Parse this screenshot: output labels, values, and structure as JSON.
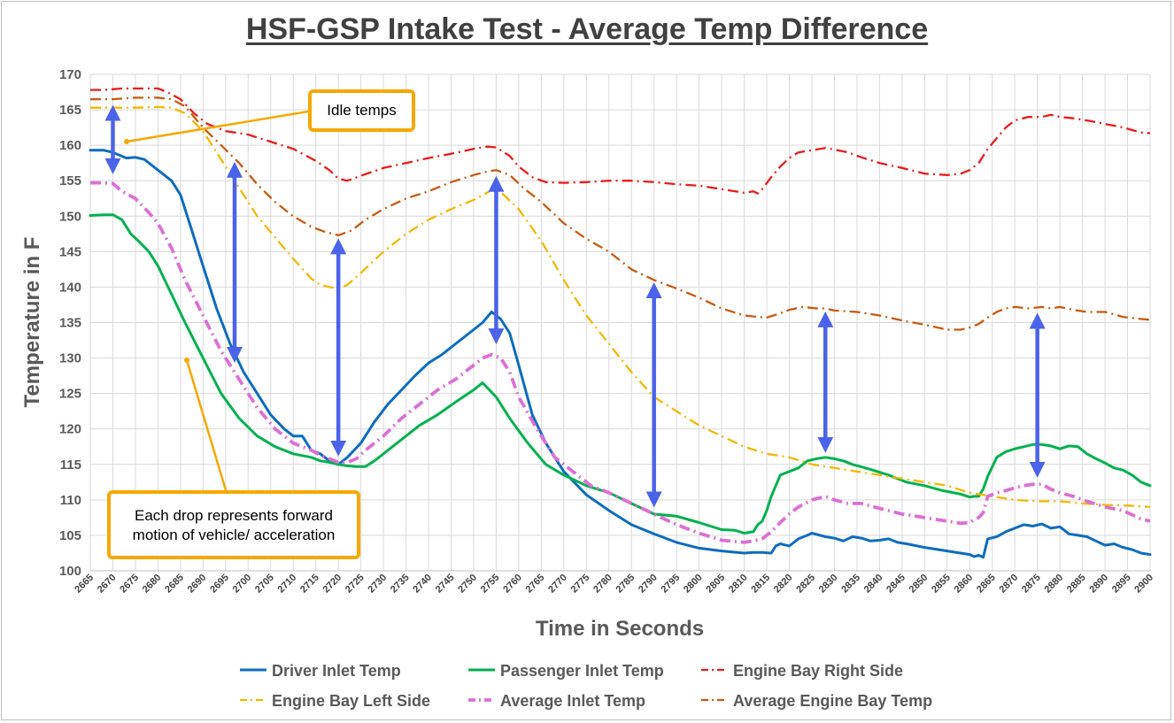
{
  "chart_data": {
    "type": "line",
    "title": "HSF-GSP Intake Test - Average Temp Difference",
    "xlabel": "Time in Seconds",
    "ylabel": "Temperature in F",
    "xlim": [
      2665,
      2900
    ],
    "ylim": [
      100,
      170
    ],
    "x_ticks": [
      2665,
      2670,
      2675,
      2680,
      2685,
      2690,
      2695,
      2700,
      2705,
      2710,
      2715,
      2720,
      2725,
      2730,
      2735,
      2740,
      2745,
      2750,
      2755,
      2760,
      2765,
      2770,
      2775,
      2780,
      2785,
      2790,
      2795,
      2800,
      2805,
      2810,
      2815,
      2820,
      2825,
      2830,
      2835,
      2840,
      2845,
      2850,
      2855,
      2860,
      2865,
      2870,
      2875,
      2880,
      2885,
      2890,
      2895,
      2900
    ],
    "y_ticks": [
      100,
      105,
      110,
      115,
      120,
      125,
      130,
      135,
      140,
      145,
      150,
      155,
      160,
      165,
      170
    ],
    "grid": true,
    "legend_position": "bottom",
    "series": [
      {
        "name": "Driver Inlet Temp",
        "color": "#0f6cbd",
        "style": "solid",
        "x": [
          2665,
          2668,
          2670,
          2673,
          2675,
          2677,
          2679,
          2681,
          2683,
          2685,
          2687,
          2690,
          2693,
          2696,
          2699,
          2702,
          2705,
          2708,
          2710,
          2712,
          2714,
          2716,
          2718,
          2720,
          2722,
          2725,
          2728,
          2731,
          2734,
          2737,
          2740,
          2743,
          2746,
          2749,
          2752,
          2754,
          2756,
          2758,
          2760,
          2763,
          2766,
          2770,
          2775,
          2780,
          2785,
          2790,
          2795,
          2800,
          2805,
          2810,
          2812,
          2814,
          2816,
          2817,
          2818,
          2820,
          2822,
          2824,
          2825,
          2828,
          2830,
          2832,
          2834,
          2836,
          2838,
          2840,
          2842,
          2844,
          2846,
          2850,
          2855,
          2860,
          2861,
          2862,
          2863,
          2864,
          2866,
          2868,
          2870,
          2872,
          2874,
          2876,
          2878,
          2880,
          2882,
          2884,
          2886,
          2888,
          2890,
          2892,
          2894,
          2896,
          2898,
          2900
        ],
        "y": [
          159.3,
          159.3,
          159,
          158.2,
          158.3,
          158,
          157,
          156,
          155,
          153,
          149,
          143,
          137,
          132,
          128,
          125,
          122,
          120,
          119,
          119,
          117,
          116.5,
          115.5,
          115,
          116,
          118,
          121,
          123.5,
          125.5,
          127.5,
          129.3,
          130.5,
          132,
          133.5,
          135,
          136.5,
          135.5,
          133.5,
          129,
          122,
          118,
          114,
          110.7,
          108.5,
          106.5,
          105.2,
          104,
          103.2,
          102.8,
          102.5,
          102.6,
          102.6,
          102.5,
          103.5,
          103.8,
          103.5,
          104.5,
          105,
          105.3,
          104.8,
          104.6,
          104.2,
          104.8,
          104.6,
          104.2,
          104.3,
          104.5,
          104,
          103.8,
          103.3,
          102.8,
          102.3,
          102,
          102.2,
          101.9,
          104.5,
          104.8,
          105.5,
          106,
          106.5,
          106.3,
          106.6,
          106,
          106.2,
          105.2,
          105,
          104.8,
          104.2,
          103.6,
          103.8,
          103.3,
          103,
          102.5,
          102.3
        ]
      },
      {
        "name": "Passenger Inlet Temp",
        "color": "#00b050",
        "style": "solid",
        "x": [
          2665,
          2668,
          2670,
          2672,
          2674,
          2676,
          2678,
          2680,
          2683,
          2686,
          2690,
          2694,
          2698,
          2702,
          2706,
          2710,
          2714,
          2716,
          2718,
          2720,
          2722,
          2724,
          2726,
          2728,
          2730,
          2734,
          2738,
          2742,
          2746,
          2750,
          2752,
          2755,
          2758,
          2762,
          2766,
          2770,
          2775,
          2780,
          2785,
          2790,
          2795,
          2800,
          2805,
          2808,
          2810,
          2812,
          2813,
          2814,
          2815,
          2816,
          2818,
          2820,
          2822,
          2824,
          2826,
          2828,
          2830,
          2832,
          2834,
          2838,
          2842,
          2846,
          2850,
          2854,
          2858,
          2860,
          2861,
          2862,
          2863,
          2864,
          2866,
          2868,
          2870,
          2872,
          2874,
          2876,
          2878,
          2880,
          2882,
          2884,
          2886,
          2888,
          2890,
          2892,
          2894,
          2896,
          2898,
          2900
        ],
        "y": [
          150.1,
          150.2,
          150.2,
          149.5,
          147.5,
          146.3,
          145,
          143,
          139,
          135,
          130,
          125,
          121.5,
          119,
          117.5,
          116.5,
          116,
          115.5,
          115.3,
          115,
          114.8,
          114.7,
          114.7,
          115.5,
          116.5,
          118.5,
          120.5,
          122,
          123.8,
          125.5,
          126.5,
          124.5,
          121.5,
          118,
          115,
          113.5,
          112,
          111,
          109.5,
          108,
          107.7,
          106.8,
          105.8,
          105.7,
          105.3,
          105.5,
          106.5,
          107,
          108.5,
          110.5,
          113.5,
          114,
          114.5,
          115.5,
          115.8,
          116,
          115.8,
          115.5,
          115,
          114.3,
          113.5,
          112.5,
          112,
          111.3,
          110.8,
          110.4,
          110.5,
          110.5,
          111.5,
          113.3,
          116,
          116.8,
          117.2,
          117.5,
          117.8,
          117.8,
          117.6,
          117.2,
          117.6,
          117.5,
          116.5,
          115.8,
          115.2,
          114.5,
          114.2,
          113.5,
          112.5,
          112
        ]
      },
      {
        "name": "Engine Bay Right Side",
        "color": "#e81c1c",
        "style": "dashdot",
        "x": [
          2665,
          2668,
          2672,
          2676,
          2680,
          2682,
          2685,
          2688,
          2691,
          2695,
          2700,
          2705,
          2710,
          2715,
          2718,
          2720,
          2722,
          2725,
          2730,
          2735,
          2740,
          2745,
          2750,
          2753,
          2755,
          2758,
          2760,
          2763,
          2766,
          2770,
          2775,
          2780,
          2785,
          2790,
          2795,
          2800,
          2805,
          2810,
          2812,
          2813,
          2814,
          2816,
          2818,
          2820,
          2822,
          2825,
          2828,
          2830,
          2833,
          2836,
          2840,
          2845,
          2850,
          2855,
          2858,
          2860,
          2862,
          2864,
          2866,
          2868,
          2870,
          2873,
          2876,
          2878,
          2880,
          2883,
          2886,
          2890,
          2894,
          2898,
          2900
        ],
        "y": [
          167.8,
          167.8,
          168,
          168,
          168,
          167.5,
          166.5,
          164.5,
          163,
          162,
          161.5,
          160.5,
          159.5,
          157.8,
          156.5,
          155.3,
          155,
          155.7,
          156.8,
          157.5,
          158.2,
          158.8,
          159.5,
          159.8,
          159.7,
          158.5,
          157,
          155.5,
          154.8,
          154.7,
          154.8,
          155,
          155,
          154.8,
          154.5,
          154.3,
          153.8,
          153.3,
          153.5,
          153.2,
          153.8,
          155.5,
          157,
          158.2,
          159,
          159.3,
          159.6,
          159.4,
          159,
          158.3,
          157.5,
          156.8,
          156,
          155.8,
          156,
          156.5,
          157.5,
          159.5,
          161,
          162.5,
          163.5,
          164,
          164,
          164.3,
          164,
          163.8,
          163.5,
          163,
          162.5,
          161.8,
          161.7
        ]
      },
      {
        "name": "Engine Bay Left Side",
        "color": "#f2b800",
        "style": "dashdot",
        "x": [
          2665,
          2670,
          2675,
          2680,
          2683,
          2686,
          2690,
          2694,
          2698,
          2702,
          2706,
          2710,
          2714,
          2716,
          2718,
          2720,
          2722,
          2725,
          2730,
          2735,
          2740,
          2745,
          2750,
          2755,
          2760,
          2765,
          2770,
          2775,
          2780,
          2785,
          2790,
          2795,
          2800,
          2805,
          2810,
          2815,
          2820,
          2825,
          2830,
          2835,
          2840,
          2845,
          2850,
          2855,
          2860,
          2865,
          2870,
          2875,
          2880,
          2885,
          2890,
          2895,
          2900
        ],
        "y": [
          165.3,
          165.3,
          165.3,
          165.4,
          165.3,
          164.5,
          162,
          158,
          154,
          150,
          147,
          144,
          141.2,
          140.3,
          140,
          139.8,
          140.3,
          142,
          145,
          147.5,
          149.5,
          151,
          152.3,
          154,
          151,
          146.5,
          141,
          136,
          132,
          128,
          124.5,
          122.5,
          120.5,
          119,
          117.5,
          116.5,
          116,
          115,
          114.5,
          114,
          113.5,
          113,
          112.5,
          112,
          111,
          110.5,
          110,
          109.8,
          109.8,
          109.5,
          109.3,
          109.2,
          109
        ]
      },
      {
        "name": "Average Inlet Temp",
        "color": "#da70d6",
        "style": "dashdot",
        "x": [
          2665,
          2668,
          2670,
          2672,
          2675,
          2678,
          2680,
          2683,
          2686,
          2690,
          2694,
          2698,
          2702,
          2706,
          2710,
          2714,
          2716,
          2718,
          2720,
          2722,
          2724,
          2726,
          2730,
          2734,
          2738,
          2742,
          2746,
          2750,
          2752,
          2754,
          2756,
          2758,
          2760,
          2764,
          2768,
          2772,
          2776,
          2780,
          2785,
          2790,
          2795,
          2800,
          2805,
          2810,
          2812,
          2814,
          2816,
          2818,
          2820,
          2822,
          2825,
          2828,
          2830,
          2833,
          2836,
          2840,
          2845,
          2850,
          2855,
          2858,
          2860,
          2861,
          2862,
          2863,
          2864,
          2866,
          2868,
          2870,
          2872,
          2874,
          2876,
          2878,
          2880,
          2883,
          2886,
          2890,
          2894,
          2898,
          2900
        ],
        "y": [
          154.7,
          154.7,
          154.6,
          153.5,
          152.5,
          150.5,
          149,
          145.5,
          141,
          136,
          131,
          127,
          123,
          120,
          118,
          117,
          116.3,
          115.8,
          115.3,
          115.3,
          115.8,
          117,
          119,
          121.5,
          123.5,
          125.5,
          127,
          129,
          130,
          130.5,
          130,
          128,
          124.5,
          120,
          116,
          114,
          112,
          111,
          109.5,
          108,
          106.5,
          105.3,
          104.3,
          104,
          104.2,
          104.5,
          105.5,
          106.8,
          108,
          109,
          110,
          110.5,
          110,
          109.5,
          109.5,
          108.8,
          108,
          107.5,
          107,
          106.7,
          106.8,
          107.2,
          107.5,
          108.2,
          110.5,
          111,
          111.3,
          111.7,
          112,
          112.2,
          112.2,
          111.5,
          111,
          110.5,
          109.8,
          109,
          108.5,
          107.3,
          107
        ]
      },
      {
        "name": "Average Engine Bay Temp",
        "color": "#c55a11",
        "style": "dashdot",
        "x": [
          2665,
          2670,
          2675,
          2680,
          2683,
          2686,
          2690,
          2694,
          2698,
          2702,
          2706,
          2710,
          2714,
          2717,
          2720,
          2723,
          2726,
          2730,
          2735,
          2740,
          2745,
          2750,
          2753,
          2755,
          2758,
          2761,
          2765,
          2770,
          2775,
          2780,
          2785,
          2790,
          2795,
          2800,
          2805,
          2810,
          2813,
          2815,
          2818,
          2820,
          2823,
          2826,
          2828,
          2830,
          2835,
          2840,
          2845,
          2850,
          2855,
          2858,
          2860,
          2862,
          2864,
          2866,
          2868,
          2870,
          2873,
          2876,
          2878,
          2880,
          2883,
          2886,
          2890,
          2894,
          2898,
          2900
        ],
        "y": [
          166.5,
          166.5,
          166.7,
          166.7,
          166.5,
          165.5,
          162.5,
          160,
          157.5,
          154.5,
          152,
          150,
          148.5,
          147.8,
          147.3,
          148,
          149.5,
          151,
          152.5,
          153.5,
          154.8,
          155.8,
          156.3,
          156.5,
          155.8,
          154,
          152,
          149,
          146.8,
          145,
          142.5,
          141,
          139.8,
          138.5,
          137,
          136,
          135.8,
          135.7,
          136.3,
          136.8,
          137.2,
          137,
          137,
          136.7,
          136.5,
          136,
          135.3,
          134.7,
          134,
          134,
          134.3,
          134.8,
          135.7,
          136.5,
          137,
          137.2,
          137,
          137.2,
          137,
          137.2,
          136.8,
          136.5,
          136.5,
          135.8,
          135.5,
          135.4
        ]
      }
    ],
    "annotations": [
      {
        "text": "Idle temps"
      },
      {
        "text": "Each drop represents forward motion of vehicle/ acceleration"
      }
    ],
    "arrows": [
      {
        "x": 2670,
        "y_from": 155.3,
        "y_to": 166.3
      },
      {
        "x": 2697,
        "y_from": 128.7,
        "y_to": 158.3
      },
      {
        "x": 2720,
        "y_from": 115.5,
        "y_to": 147.5
      },
      {
        "x": 2755,
        "y_from": 131.3,
        "y_to": 156.3
      },
      {
        "x": 2790,
        "y_from": 108.3,
        "y_to": 141.3
      },
      {
        "x": 2828,
        "y_from": 116,
        "y_to": 137.2
      },
      {
        "x": 2875,
        "y_from": 112.5,
        "y_to": 137
      }
    ]
  }
}
